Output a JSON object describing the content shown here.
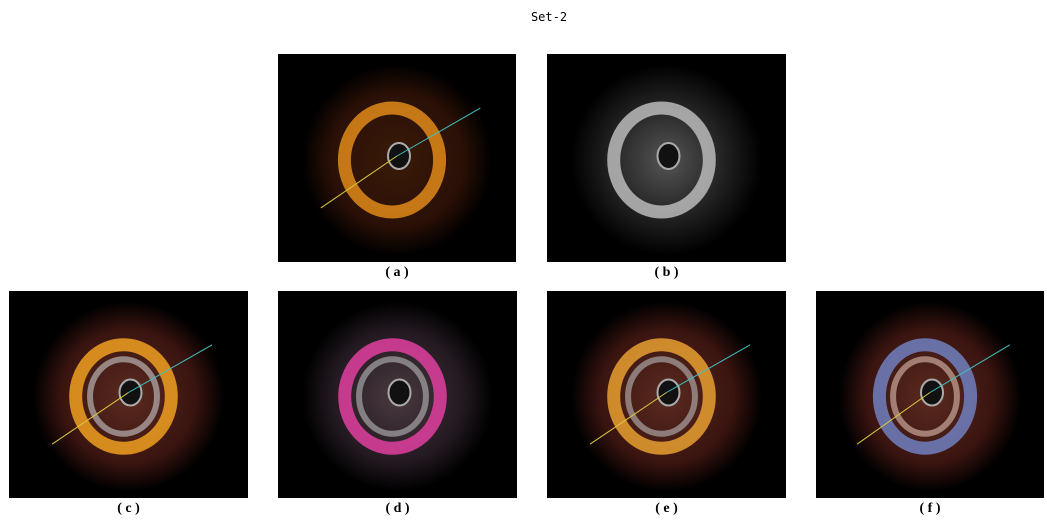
{
  "title": "Set-2",
  "panels": [
    {
      "label": "( a )"
    },
    {
      "label": "( b )"
    },
    {
      "label": "( c )"
    },
    {
      "label": "( d )"
    },
    {
      "label": "( e )"
    },
    {
      "label": "( f )"
    }
  ]
}
